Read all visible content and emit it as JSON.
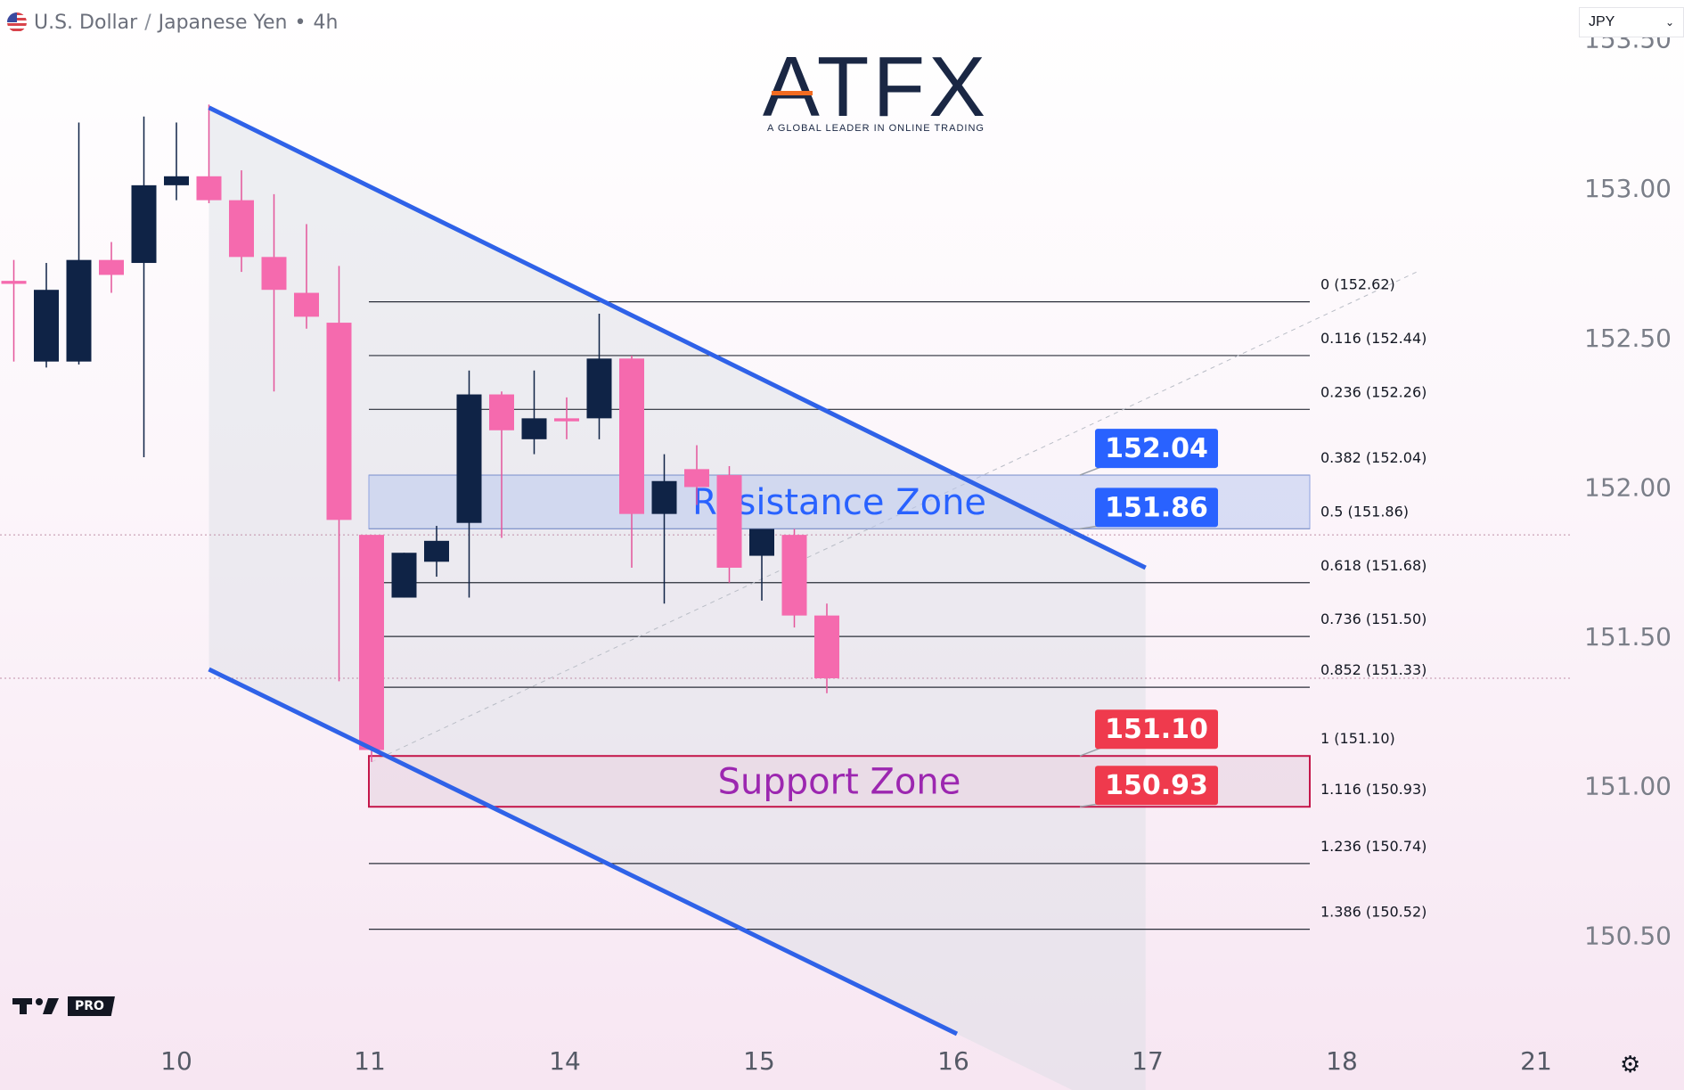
{
  "header": {
    "base": "U.S. Dollar",
    "separator": "/",
    "quote": "Japanese Yen",
    "interval": "4h"
  },
  "currency_selector": {
    "value": "JPY"
  },
  "logo": {
    "text": "ATFX",
    "tagline": "A GLOBAL LEADER IN ONLINE TRADING"
  },
  "watermark": {
    "text": "PRO",
    "icon": "tradingview-logo-icon"
  },
  "settings_icon": "gear-icon",
  "colors": {
    "bullish": "#0f2346",
    "bearish": "#f56aae",
    "channel": "#2f62e8",
    "resistance_label": "#2962ff",
    "support_label": "#ef3a4d",
    "support_text": "#9c27b0"
  },
  "chart_data": {
    "type": "candlestick",
    "title": "U.S. Dollar / Japanese Yen • 4h",
    "ylim": [
      150.17,
      153.63
    ],
    "y_ticks": [
      "153.50",
      "153.00",
      "152.50",
      "152.00",
      "151.50",
      "151.00",
      "150.50"
    ],
    "x_ticks": [
      "10",
      "11",
      "14",
      "15",
      "16",
      "17",
      "18",
      "21"
    ],
    "candles": [
      {
        "o": 152.69,
        "h": 152.76,
        "l": 152.42,
        "c": 152.68
      },
      {
        "o": 152.42,
        "h": 152.75,
        "l": 152.4,
        "c": 152.66
      },
      {
        "o": 152.42,
        "h": 153.22,
        "l": 152.41,
        "c": 152.76
      },
      {
        "o": 152.76,
        "h": 152.82,
        "l": 152.65,
        "c": 152.71
      },
      {
        "o": 152.75,
        "h": 153.24,
        "l": 152.1,
        "c": 153.01
      },
      {
        "o": 153.01,
        "h": 153.22,
        "l": 152.96,
        "c": 153.04
      },
      {
        "o": 153.04,
        "h": 153.28,
        "l": 152.95,
        "c": 152.96
      },
      {
        "o": 152.96,
        "h": 153.06,
        "l": 152.72,
        "c": 152.77
      },
      {
        "o": 152.77,
        "h": 152.98,
        "l": 152.32,
        "c": 152.66
      },
      {
        "o": 152.65,
        "h": 152.88,
        "l": 152.53,
        "c": 152.57
      },
      {
        "o": 152.55,
        "h": 152.74,
        "l": 151.35,
        "c": 151.89
      },
      {
        "o": 151.84,
        "h": 151.84,
        "l": 151.08,
        "c": 151.12
      },
      {
        "o": 151.63,
        "h": 151.78,
        "l": 151.63,
        "c": 151.78
      },
      {
        "o": 151.75,
        "h": 151.87,
        "l": 151.7,
        "c": 151.82
      },
      {
        "o": 151.88,
        "h": 152.39,
        "l": 151.63,
        "c": 152.31
      },
      {
        "o": 152.31,
        "h": 152.32,
        "l": 151.83,
        "c": 152.19
      },
      {
        "o": 152.16,
        "h": 152.39,
        "l": 152.11,
        "c": 152.23
      },
      {
        "o": 152.23,
        "h": 152.3,
        "l": 152.16,
        "c": 152.22
      },
      {
        "o": 152.23,
        "h": 152.58,
        "l": 152.16,
        "c": 152.43
      },
      {
        "o": 152.43,
        "h": 152.44,
        "l": 151.73,
        "c": 151.91
      },
      {
        "o": 151.91,
        "h": 152.11,
        "l": 151.61,
        "c": 152.02
      },
      {
        "o": 152.06,
        "h": 152.14,
        "l": 151.94,
        "c": 152.0
      },
      {
        "o": 152.04,
        "h": 152.07,
        "l": 151.68,
        "c": 151.73
      },
      {
        "o": 151.77,
        "h": 151.84,
        "l": 151.62,
        "c": 151.86
      },
      {
        "o": 151.84,
        "h": 151.86,
        "l": 151.53,
        "c": 151.57
      },
      {
        "o": 151.57,
        "h": 151.61,
        "l": 151.31,
        "c": 151.36
      }
    ],
    "channel": {
      "upper": [
        {
          "i": 6,
          "p": 153.27
        },
        {
          "i": 34.8,
          "p": 151.73
        }
      ],
      "lower": [
        {
          "i": 6,
          "p": 151.39
        },
        {
          "i": 29,
          "p": 150.17
        }
      ]
    },
    "fib_levels": [
      {
        "label": "0 (152.62)",
        "price": 152.62
      },
      {
        "label": "0.116 (152.44)",
        "price": 152.44
      },
      {
        "label": "0.236 (152.26)",
        "price": 152.26
      },
      {
        "label": "0.382 (152.04)",
        "price": 152.04
      },
      {
        "label": "0.5 (151.86)",
        "price": 151.86
      },
      {
        "label": "0.618 (151.68)",
        "price": 151.68
      },
      {
        "label": "0.736 (151.50)",
        "price": 151.5
      },
      {
        "label": "0.852 (151.33)",
        "price": 151.33
      },
      {
        "label": "1 (151.10)",
        "price": 151.1
      },
      {
        "label": "1.116 (150.93)",
        "price": 150.93
      },
      {
        "label": "1.236 (150.74)",
        "price": 150.74
      },
      {
        "label": "1.386 (150.52)",
        "price": 150.52
      }
    ],
    "zones": [
      {
        "name": "Resistance Zone",
        "top": 152.04,
        "bottom": 151.86,
        "labels": [
          "152.04",
          "151.86"
        ]
      },
      {
        "name": "Support Zone",
        "top": 151.1,
        "bottom": 150.93,
        "labels": [
          "151.10",
          "150.93"
        ]
      }
    ],
    "dotted_price_lines": [
      151.84,
      151.36
    ]
  }
}
